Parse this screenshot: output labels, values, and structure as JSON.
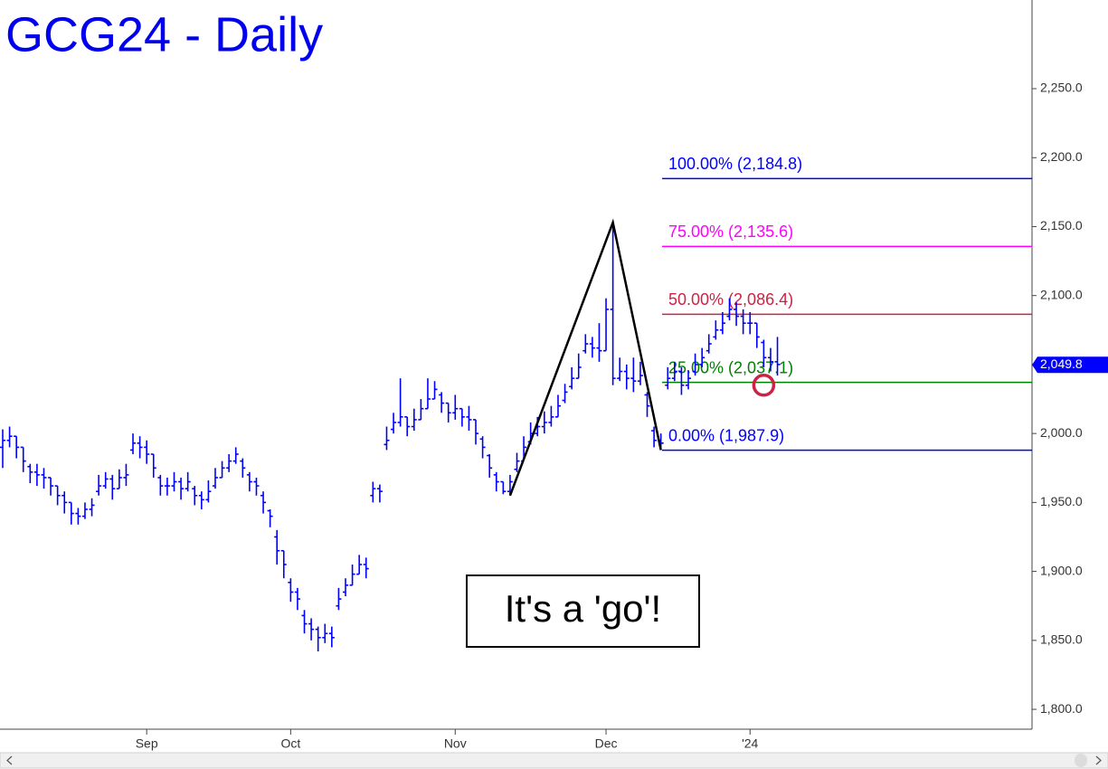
{
  "chart_data": {
    "type": "ohlc",
    "title": "GCG24 - Daily",
    "color": "#0000ff",
    "categories": [
      null,
      null,
      null,
      null,
      null,
      null,
      null,
      null,
      null,
      null,
      null,
      null,
      null,
      null,
      null,
      null,
      null,
      null,
      null,
      null,
      null,
      "Sep",
      null,
      null,
      null,
      null,
      null,
      null,
      null,
      null,
      null,
      null,
      null,
      null,
      null,
      null,
      null,
      null,
      null,
      null,
      null,
      null,
      "Oct",
      null,
      null,
      null,
      null,
      null,
      null,
      null,
      null,
      null,
      null,
      null,
      null,
      null,
      null,
      null,
      null,
      null,
      null,
      null,
      null,
      null,
      null,
      null,
      "Nov",
      null,
      null,
      null,
      null,
      null,
      null,
      null,
      null,
      null,
      null,
      null,
      null,
      null,
      null,
      null,
      null,
      null,
      null,
      null,
      null,
      null,
      "Dec",
      null,
      null,
      null,
      null,
      null,
      null,
      null,
      null,
      null,
      null,
      null,
      null,
      null,
      null,
      null,
      null,
      null,
      null,
      null,
      null,
      "'24",
      null,
      null,
      null,
      null
    ],
    "open": [
      1990,
      1995,
      1998,
      1990,
      1976,
      1972,
      1970,
      1968,
      1962,
      1955,
      1950,
      1942,
      1940,
      1945,
      1958,
      1962,
      1967,
      1960,
      1968,
      1988,
      1993,
      1990,
      1985,
      1968,
      1962,
      1962,
      1965,
      1960,
      1960,
      1955,
      1952,
      1962,
      1968,
      1975,
      1980,
      1980,
      1970,
      1965,
      1955,
      1944,
      1925,
      1915,
      1892,
      1885,
      1868,
      1862,
      1858,
      1852,
      1855,
      1875,
      1885,
      1890,
      1898,
      1905,
      1955,
      1960,
      1992,
      2003,
      2008,
      2012,
      2005,
      2010,
      2018,
      2025,
      2028,
      2022,
      2015,
      2018,
      2012,
      2010,
      1996,
      1984,
      1970,
      1965,
      1958,
      1974,
      1980,
      1994,
      2000,
      2005,
      2008,
      2012,
      2024,
      2034,
      2040,
      2060,
      2065,
      2062,
      2060,
      2090,
      2040,
      2045,
      2040,
      2038,
      2028,
      2002,
      1995,
      2035,
      2040,
      2045,
      2035,
      2045,
      2050,
      2060,
      2070,
      2075,
      2085,
      2090,
      2085,
      2080,
      2080,
      2066,
      2055,
      2052
    ],
    "high": [
      2003,
      2005,
      1998,
      1990,
      1978,
      1978,
      1975,
      1968,
      1962,
      1958,
      1950,
      1946,
      1950,
      1953,
      1970,
      1972,
      1970,
      1974,
      1978,
      2000,
      1998,
      1995,
      1985,
      1970,
      1968,
      1972,
      1968,
      1972,
      1962,
      1958,
      1966,
      1975,
      1980,
      1985,
      1990,
      1982,
      1972,
      1968,
      1958,
      1945,
      1930,
      1915,
      1895,
      1888,
      1872,
      1866,
      1860,
      1862,
      1860,
      1888,
      1895,
      1905,
      1912,
      1910,
      1965,
      1963,
      2005,
      2015,
      2040,
      2012,
      2018,
      2025,
      2040,
      2038,
      2030,
      2022,
      2028,
      2018,
      2020,
      2010,
      1998,
      1985,
      1972,
      1965,
      1970,
      1986,
      1998,
      2008,
      2012,
      2016,
      2020,
      2028,
      2036,
      2048,
      2058,
      2072,
      2070,
      2080,
      2098,
      2153,
      2055,
      2050,
      2055,
      2052,
      2030,
      2005,
      2000,
      2048,
      2052,
      2048,
      2046,
      2058,
      2062,
      2072,
      2082,
      2088,
      2098,
      2095,
      2090,
      2088,
      2080,
      2068,
      2062,
      2070
    ],
    "low": [
      1975,
      1990,
      1982,
      1972,
      1964,
      1962,
      1960,
      1955,
      1948,
      1942,
      1934,
      1934,
      1938,
      1940,
      1955,
      1960,
      1952,
      1960,
      1962,
      1985,
      1982,
      1978,
      1968,
      1955,
      1955,
      1958,
      1952,
      1958,
      1948,
      1945,
      1950,
      1960,
      1968,
      1972,
      1978,
      1968,
      1958,
      1955,
      1942,
      1932,
      1905,
      1895,
      1878,
      1872,
      1855,
      1850,
      1842,
      1848,
      1845,
      1872,
      1882,
      1890,
      1898,
      1895,
      1950,
      1950,
      1988,
      2000,
      2005,
      1998,
      2002,
      2010,
      2018,
      2025,
      2015,
      2008,
      2010,
      2005,
      2002,
      1992,
      1982,
      1968,
      1958,
      1956,
      1955,
      1972,
      1982,
      1992,
      1998,
      2000,
      2005,
      2012,
      2022,
      2032,
      2040,
      2058,
      2055,
      2052,
      2060,
      2035,
      2038,
      2032,
      2030,
      2035,
      2012,
      1990,
      1988,
      2032,
      2038,
      2028,
      2032,
      2042,
      2048,
      2058,
      2068,
      2072,
      2082,
      2078,
      2072,
      2072,
      2062,
      2048,
      2045,
      2042
    ],
    "close": [
      1995,
      1998,
      1990,
      1980,
      1972,
      1970,
      1968,
      1962,
      1955,
      1950,
      1942,
      1940,
      1945,
      1948,
      1962,
      1967,
      1960,
      1968,
      1970,
      1993,
      1990,
      1985,
      1975,
      1962,
      1962,
      1965,
      1960,
      1965,
      1955,
      1952,
      1958,
      1968,
      1975,
      1980,
      1985,
      1975,
      1965,
      1962,
      1950,
      1940,
      1915,
      1905,
      1885,
      1880,
      1862,
      1858,
      1852,
      1855,
      1852,
      1880,
      1890,
      1898,
      1905,
      1902,
      1960,
      1958,
      1995,
      2008,
      2012,
      2005,
      2010,
      2018,
      2025,
      2032,
      2022,
      2015,
      2018,
      2012,
      2010,
      2000,
      1990,
      1975,
      1965,
      1958,
      1965,
      1980,
      1990,
      2000,
      2005,
      2008,
      2012,
      2020,
      2030,
      2040,
      2048,
      2065,
      2062,
      2060,
      2090,
      2040,
      2045,
      2040,
      2038,
      2042,
      2020,
      1995,
      1993,
      2040,
      2045,
      2035,
      2040,
      2050,
      2055,
      2065,
      2075,
      2080,
      2090,
      2085,
      2080,
      2080,
      2070,
      2055,
      2052,
      2050
    ],
    "ylim": [
      1785.6,
      2314.3
    ],
    "yticks": [
      {
        "value": 1800,
        "label": "1,800.0"
      },
      {
        "value": 1850,
        "label": "1,850.0"
      },
      {
        "value": 1900,
        "label": "1,900.0"
      },
      {
        "value": 1950,
        "label": "1,950.0"
      },
      {
        "value": 2000,
        "label": "2,000.0"
      },
      {
        "value": 2050,
        "label": "2,050.0"
      },
      {
        "value": 2100,
        "label": "2,100.0"
      },
      {
        "value": 2150,
        "label": "2,150.0"
      },
      {
        "value": 2200,
        "label": "2,200.0"
      },
      {
        "value": 2250,
        "label": "2,250.0"
      }
    ],
    "levels": [
      {
        "label": "100.00% (2,184.8)",
        "value": 2184.8,
        "color": "#0000ff"
      },
      {
        "label": "75.00% (2,135.6)",
        "value": 2135.6,
        "color": "#ff00ff"
      },
      {
        "label": "50.00% (2,086.4)",
        "value": 2086.4,
        "color": "#cc2244"
      },
      {
        "label": "25.00% (2,037.1)",
        "value": 2037.1,
        "color": "#008000"
      },
      {
        "label": "0.00% (1,987.9)",
        "value": 1987.9,
        "color": "#0000ff"
      }
    ],
    "pattern": {
      "x": [
        74,
        89,
        96
      ],
      "values": [
        1955,
        2153,
        1988
      ],
      "color": "#000000"
    },
    "marker": {
      "x": 111,
      "value": 2035,
      "color": "#cc2244"
    },
    "last_price": {
      "value": 2049.8,
      "label": "2,049.8",
      "color": "#0000ff"
    },
    "annotation": "It's a 'go'!"
  }
}
